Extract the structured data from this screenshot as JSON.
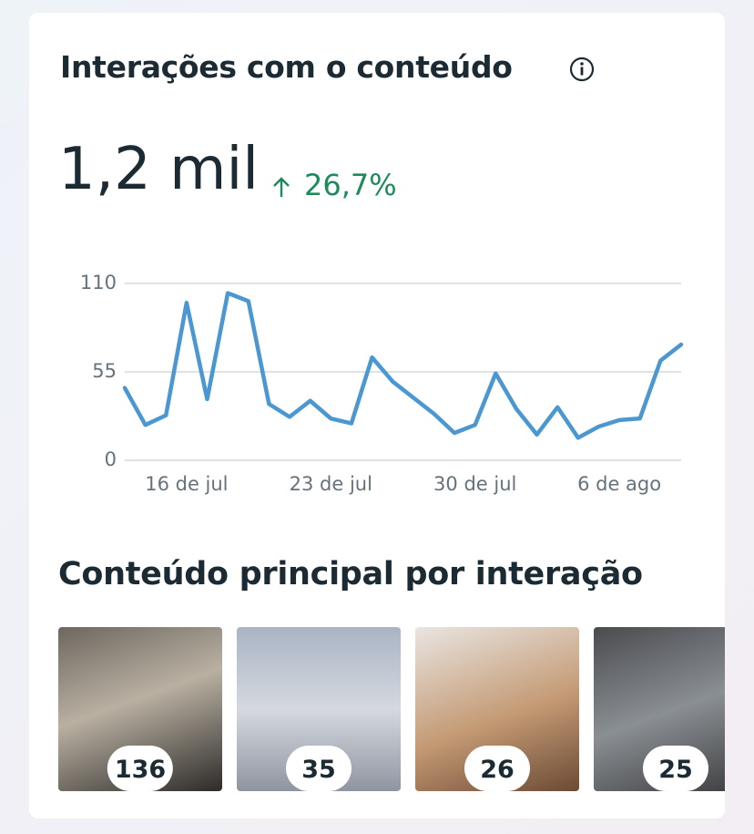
{
  "header": {
    "title": "Interações com o conteúdo",
    "total": "1,2 mil",
    "change": "26,7%"
  },
  "chart_data": {
    "type": "line",
    "categories": [
      null,
      null,
      null,
      "16 de jul",
      null,
      null,
      null,
      null,
      null,
      null,
      "23 de jul",
      null,
      null,
      null,
      null,
      null,
      null,
      "30 de jul",
      null,
      null,
      null,
      null,
      null,
      null,
      "6 de ago",
      null,
      null,
      null
    ],
    "series": [
      {
        "color": "#4b97d1",
        "values": [
          45,
          22,
          28,
          98,
          38,
          104,
          99,
          35,
          27,
          37,
          26,
          23,
          64,
          49,
          39,
          29,
          17,
          22,
          54,
          32,
          16,
          33,
          14,
          21,
          25,
          26,
          62,
          72
        ]
      }
    ],
    "ylim": [
      0,
      110
    ],
    "yticks": [
      0,
      55,
      110
    ],
    "grid": true
  },
  "section": {
    "title": "Conteúdo principal por interação"
  },
  "thumbnails": [
    {
      "value": 136
    },
    {
      "value": 35
    },
    {
      "value": 26
    },
    {
      "value": 25
    }
  ]
}
